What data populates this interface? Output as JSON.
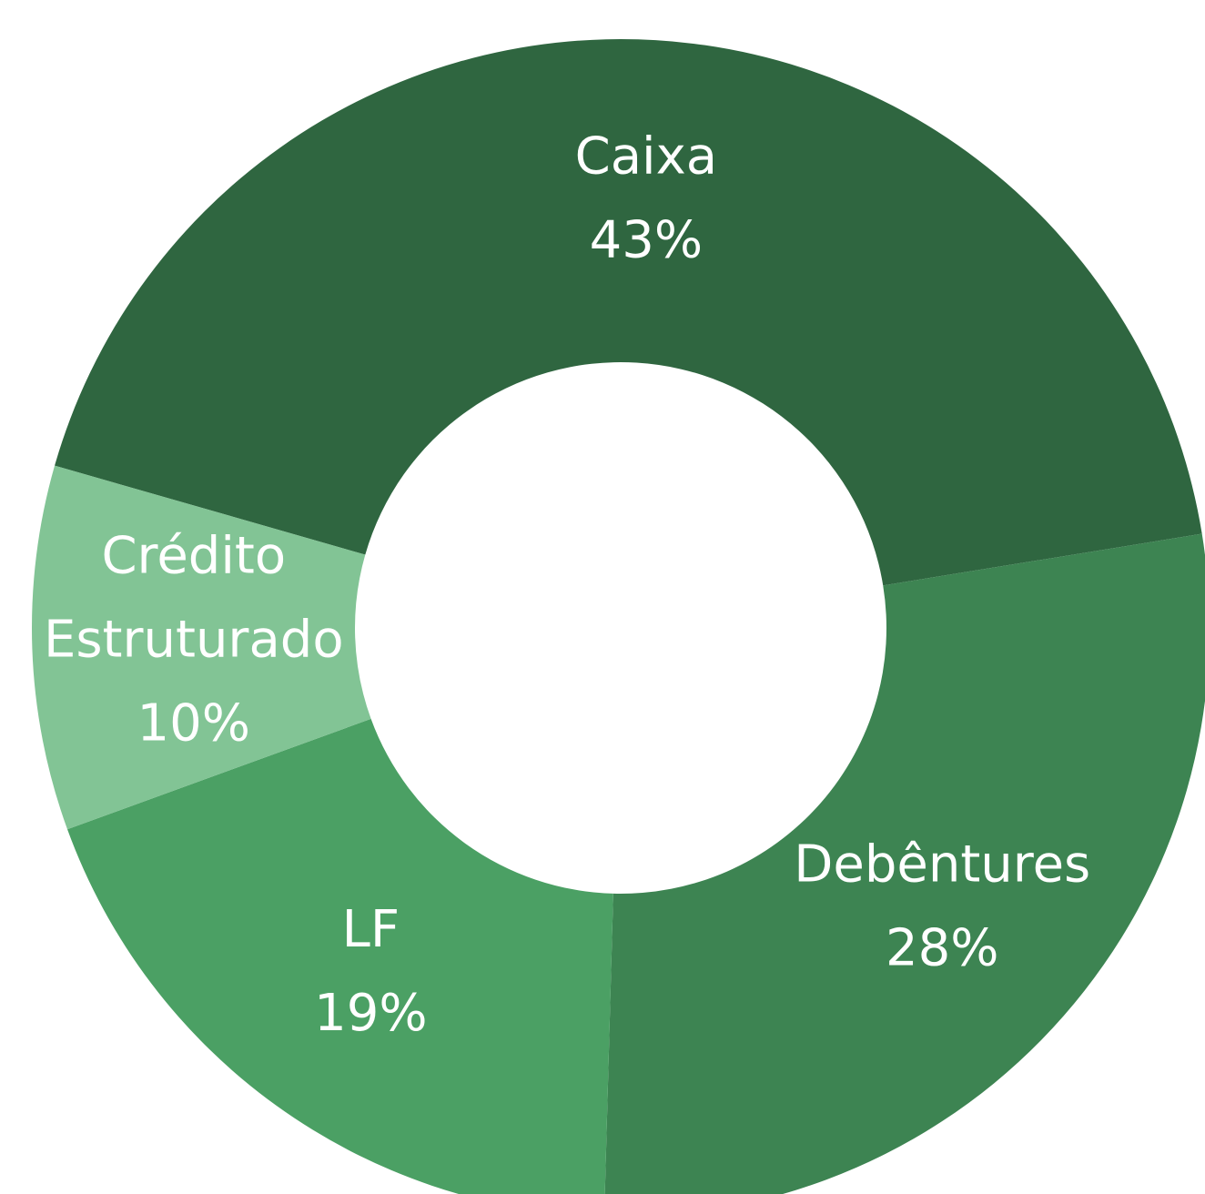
{
  "chart_data": {
    "type": "donut",
    "categories": [
      "Caixa",
      "Debêntures",
      "LF",
      "Crédito Estruturado"
    ],
    "values": [
      43,
      28,
      19,
      10
    ],
    "value_labels": [
      "43%",
      "28%",
      "19%",
      "10%"
    ],
    "colors": [
      "#2f6640",
      "#3d8452",
      "#4ba064",
      "#82c495"
    ]
  }
}
